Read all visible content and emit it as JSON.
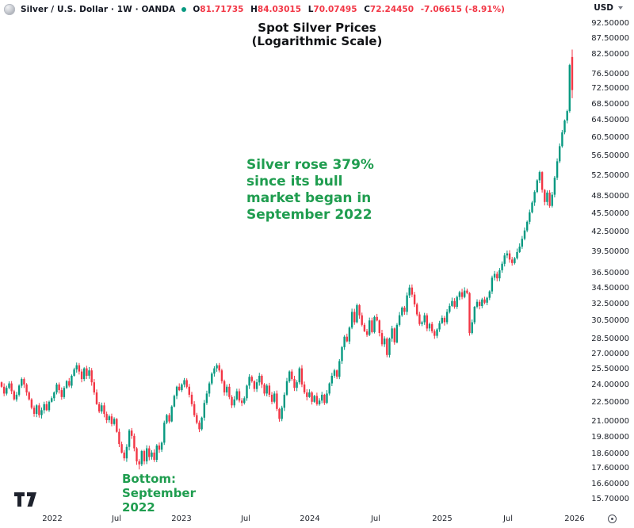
{
  "header": {
    "symbol": "Silver / U.S. Dollar",
    "interval": "1W",
    "exchange": "OANDA",
    "separator": " · ",
    "market_status_color": "#089981",
    "ohlc": {
      "o_label": "O",
      "o": "81.71735",
      "h_label": "H",
      "h": "84.03015",
      "l_label": "L",
      "l": "70.07495",
      "c_label": "C",
      "c": "72.24450",
      "change": "-7.06615 (-8.91%)",
      "value_color": "#f23645"
    },
    "currency": "USD"
  },
  "annotations": {
    "title": {
      "lines": [
        "Spot Silver Prices",
        "(Logarithmic Scale)"
      ]
    },
    "bull_note": {
      "lines": [
        "Silver rose 379%",
        "since its bull",
        "market began in",
        "September 2022"
      ],
      "color": "#1f9d4f"
    },
    "bottom_note": {
      "lines": [
        "Bottom:",
        "September",
        "2022"
      ],
      "color": "#1f9d4f"
    }
  },
  "chart_data": {
    "type": "candlestick",
    "title": "Spot Silver Prices (Logarithmic Scale)",
    "symbol": "Silver / U.S. Dollar, OANDA, weekly",
    "legend_position": "none",
    "grid": false,
    "y_axis": {
      "scale": "logarithmic",
      "min": 15.7,
      "max": 92.5,
      "tick_labels": [
        "92.50000",
        "87.50000",
        "82.50000",
        "76.50000",
        "72.50000",
        "68.50000",
        "64.50000",
        "60.50000",
        "56.50000",
        "52.50000",
        "48.50000",
        "45.50000",
        "42.50000",
        "39.50000",
        "36.50000",
        "34.50000",
        "32.50000",
        "30.50000",
        "28.50000",
        "27.00000",
        "25.50000",
        "24.00000",
        "22.50000",
        "21.00000",
        "19.80000",
        "18.60000",
        "17.60000",
        "16.60000",
        "15.70000"
      ]
    },
    "x_axis": {
      "interval": "1 week",
      "range": "Aug 2021 - Jan 2026",
      "tick_labels": [
        {
          "text": "2022",
          "week": 20.3
        },
        {
          "text": "Jul",
          "week": 46
        },
        {
          "text": "2023",
          "week": 71.8
        },
        {
          "text": "Jul",
          "week": 97.5
        },
        {
          "text": "2024",
          "week": 123.3
        },
        {
          "text": "Jul",
          "week": 149.5
        },
        {
          "text": "2025",
          "week": 176
        },
        {
          "text": "Jul",
          "week": 202.5
        },
        {
          "text": "2026",
          "week": 228.8
        }
      ]
    },
    "first_open": 24.3,
    "weekly_closes": [
      23.9,
      23.3,
      23.8,
      24.2,
      23.5,
      22.8,
      23.2,
      24.0,
      24.6,
      24.1,
      23.4,
      22.8,
      22.1,
      21.6,
      22.3,
      21.5,
      21.9,
      22.4,
      21.9,
      22.6,
      22.9,
      23.4,
      24.1,
      23.6,
      23.0,
      23.8,
      24.4,
      24.0,
      24.9,
      25.5,
      25.9,
      25.3,
      24.6,
      25.6,
      24.9,
      25.4,
      24.3,
      23.4,
      22.4,
      21.8,
      22.3,
      21.6,
      21.1,
      21.4,
      20.8,
      21.2,
      20.2,
      19.3,
      18.7,
      18.3,
      19.1,
      20.3,
      19.9,
      19.0,
      18.1,
      17.9,
      18.8,
      18.1,
      19.0,
      18.4,
      18.7,
      18.2,
      19.2,
      18.9,
      19.4,
      20.9,
      21.5,
      21.0,
      22.2,
      23.1,
      23.9,
      23.6,
      24.1,
      24.5,
      23.9,
      23.2,
      22.4,
      21.5,
      20.9,
      20.4,
      21.3,
      22.5,
      23.3,
      24.2,
      25.1,
      25.6,
      25.9,
      25.4,
      24.4,
      23.4,
      23.9,
      23.0,
      22.3,
      22.8,
      23.5,
      22.7,
      22.5,
      22.9,
      24.0,
      24.8,
      24.4,
      23.7,
      24.3,
      24.9,
      24.1,
      23.3,
      24.0,
      23.2,
      22.6,
      23.3,
      22.0,
      21.2,
      22.1,
      23.2,
      24.4,
      25.3,
      24.6,
      23.8,
      24.3,
      25.6,
      24.1,
      23.4,
      23.0,
      23.4,
      22.6,
      23.1,
      22.4,
      22.7,
      23.2,
      22.5,
      23.3,
      24.2,
      24.9,
      25.4,
      24.8,
      26.3,
      27.7,
      28.8,
      28.3,
      29.8,
      31.6,
      30.4,
      32.4,
      31.2,
      30.1,
      29.4,
      29.0,
      30.6,
      29.3,
      31.0,
      30.6,
      29.2,
      28.0,
      28.6,
      26.9,
      28.6,
      29.7,
      28.2,
      30.1,
      31.2,
      32.1,
      31.6,
      33.6,
      34.6,
      33.7,
      32.5,
      31.3,
      30.2,
      30.4,
      31.2,
      29.7,
      30.2,
      29.4,
      28.9,
      29.6,
      30.3,
      30.9,
      30.4,
      31.6,
      32.3,
      32.9,
      32.2,
      33.4,
      34.0,
      33.4,
      34.2,
      33.9,
      29.2,
      30.4,
      32.2,
      32.8,
      32.3,
      33.1,
      32.7,
      33.3,
      34.1,
      35.9,
      36.4,
      35.8,
      36.9,
      37.8,
      39.0,
      39.3,
      38.4,
      37.9,
      38.6,
      39.5,
      40.3,
      41.5,
      42.8,
      44.2,
      45.8,
      47.5,
      49.4,
      51.6,
      53.2,
      49.8,
      47.6,
      49.3,
      46.9,
      48.9,
      52.1,
      55.4,
      58.6,
      61.7,
      64.5,
      66.8,
      79.3,
      72.2445
    ],
    "bottom": {
      "week_index": 55,
      "low": 17.56,
      "note": "Bottom: September 2022"
    },
    "last_candle": {
      "open": 81.71735,
      "high": 84.03015,
      "low": 70.07495,
      "close": 72.2445,
      "change": -7.06615,
      "change_pct": -8.91
    },
    "rise_pct_since_bottom": 379,
    "colors": {
      "up": "#089981",
      "down": "#f23645"
    }
  }
}
